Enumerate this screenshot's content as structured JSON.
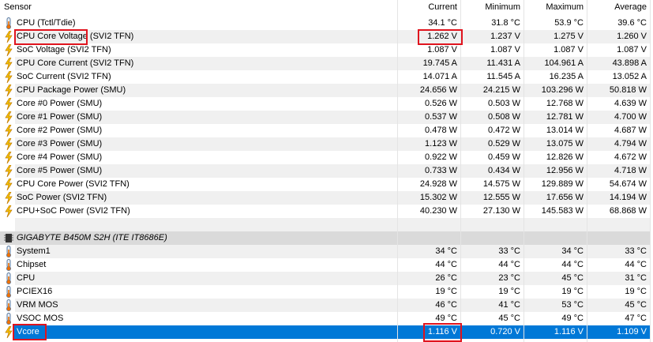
{
  "header": {
    "sensor": "Sensor",
    "current": "Current",
    "minimum": "Minimum",
    "maximum": "Maximum",
    "average": "Average"
  },
  "rows": [
    {
      "icon": "thermometer-icon",
      "name": "CPU (Tctl/Tdie)",
      "current": "34.1 °C",
      "min": "31.8 °C",
      "max": "53.9 °C",
      "avg": "39.6 °C"
    },
    {
      "icon": "lightning-icon",
      "name": "CPU Core Voltage (SVI2 TFN)",
      "current": "1.262 V",
      "min": "1.237 V",
      "max": "1.275 V",
      "avg": "1.260 V"
    },
    {
      "icon": "lightning-icon",
      "name": "SoC Voltage (SVI2 TFN)",
      "current": "1.087 V",
      "min": "1.087 V",
      "max": "1.087 V",
      "avg": "1.087 V"
    },
    {
      "icon": "lightning-icon",
      "name": "CPU Core Current (SVI2 TFN)",
      "current": "19.745 A",
      "min": "11.431 A",
      "max": "104.961 A",
      "avg": "43.898 A"
    },
    {
      "icon": "lightning-icon",
      "name": "SoC Current (SVI2 TFN)",
      "current": "14.071 A",
      "min": "11.545 A",
      "max": "16.235 A",
      "avg": "13.052 A"
    },
    {
      "icon": "lightning-icon",
      "name": "CPU Package Power (SMU)",
      "current": "24.656 W",
      "min": "24.215 W",
      "max": "103.296 W",
      "avg": "50.818 W"
    },
    {
      "icon": "lightning-icon",
      "name": "Core #0 Power (SMU)",
      "current": "0.526 W",
      "min": "0.503 W",
      "max": "12.768 W",
      "avg": "4.639 W"
    },
    {
      "icon": "lightning-icon",
      "name": "Core #1 Power (SMU)",
      "current": "0.537 W",
      "min": "0.508 W",
      "max": "12.781 W",
      "avg": "4.700 W"
    },
    {
      "icon": "lightning-icon",
      "name": "Core #2 Power (SMU)",
      "current": "0.478 W",
      "min": "0.472 W",
      "max": "13.014 W",
      "avg": "4.687 W"
    },
    {
      "icon": "lightning-icon",
      "name": "Core #3 Power (SMU)",
      "current": "1.123 W",
      "min": "0.529 W",
      "max": "13.075 W",
      "avg": "4.794 W"
    },
    {
      "icon": "lightning-icon",
      "name": "Core #4 Power (SMU)",
      "current": "0.922 W",
      "min": "0.459 W",
      "max": "12.826 W",
      "avg": "4.672 W"
    },
    {
      "icon": "lightning-icon",
      "name": "Core #5 Power (SMU)",
      "current": "0.733 W",
      "min": "0.434 W",
      "max": "12.956 W",
      "avg": "4.718 W"
    },
    {
      "icon": "lightning-icon",
      "name": "CPU Core Power (SVI2 TFN)",
      "current": "24.928 W",
      "min": "14.575 W",
      "max": "129.889 W",
      "avg": "54.674 W"
    },
    {
      "icon": "lightning-icon",
      "name": "SoC Power (SVI2 TFN)",
      "current": "15.302 W",
      "min": "12.555 W",
      "max": "17.656 W",
      "avg": "14.194 W"
    },
    {
      "icon": "lightning-icon",
      "name": "CPU+SoC Power (SVI2 TFN)",
      "current": "40.230 W",
      "min": "27.130 W",
      "max": "145.583 W",
      "avg": "68.868 W"
    },
    {
      "icon": "",
      "name": "",
      "current": "",
      "min": "",
      "max": "",
      "avg": ""
    },
    {
      "icon": "chip-icon",
      "name": "GIGABYTE B450M S2H (ITE IT8686E)",
      "current": "",
      "min": "",
      "max": "",
      "avg": "",
      "group": true
    },
    {
      "icon": "thermometer-icon",
      "name": "System1",
      "current": "34 °C",
      "min": "33 °C",
      "max": "34 °C",
      "avg": "33 °C"
    },
    {
      "icon": "thermometer-icon",
      "name": "Chipset",
      "current": "44 °C",
      "min": "44 °C",
      "max": "44 °C",
      "avg": "44 °C"
    },
    {
      "icon": "thermometer-icon",
      "name": "CPU",
      "current": "26 °C",
      "min": "23 °C",
      "max": "45 °C",
      "avg": "31 °C"
    },
    {
      "icon": "thermometer-icon",
      "name": "PCIEX16",
      "current": "19 °C",
      "min": "19 °C",
      "max": "19 °C",
      "avg": "19 °C"
    },
    {
      "icon": "thermometer-icon",
      "name": "VRM MOS",
      "current": "46 °C",
      "min": "41 °C",
      "max": "53 °C",
      "avg": "45 °C"
    },
    {
      "icon": "thermometer-icon",
      "name": "VSOC MOS",
      "current": "49 °C",
      "min": "45 °C",
      "max": "49 °C",
      "avg": "47 °C"
    },
    {
      "icon": "lightning-icon",
      "name": "Vcore",
      "current": "1.116 V",
      "min": "0.720 V",
      "max": "1.116 V",
      "avg": "1.109 V",
      "selected": true
    }
  ],
  "colors": {
    "selection": "#0078d7",
    "highlight": "#e0141e",
    "stripe": "#f0f0f0"
  }
}
